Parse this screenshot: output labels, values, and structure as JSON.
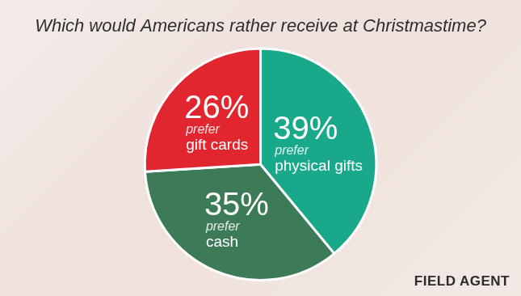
{
  "chart_data": {
    "type": "pie",
    "title": "Which would Americans rather receive at Christmastime?",
    "categories": [
      "prefer physical gifts",
      "prefer cash",
      "prefer gift cards"
    ],
    "values": [
      39,
      35,
      26
    ],
    "value_labels": [
      "39%",
      "35%",
      "26%"
    ],
    "colors": [
      "#19a98a",
      "#3d7b58",
      "#e1262f"
    ],
    "data_labels": true,
    "legend": false,
    "annotations": [
      "FIELD AGENT"
    ]
  }
}
